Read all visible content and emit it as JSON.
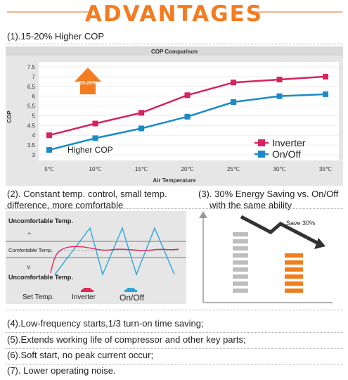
{
  "title": "ADVANTAGES",
  "section1": {
    "heading": "(1).15-20% Higher COP"
  },
  "section2": {
    "heading_line1": "(2). Constant temp. control, small temp.",
    "heading_line2": "difference, more comfortable",
    "labels": {
      "uncomfortable_top": "Uncomfortable Temp.",
      "comfortable": "Comfortable Temp.",
      "uncomfortable_bottom": "Uncomfortable Temp.",
      "set_temp": "Set Temp.",
      "inverter": "Inverter",
      "onoff": "On/Off"
    }
  },
  "section3": {
    "heading_line1": "(3). 30% Energy Saving vs. On/Off",
    "heading_line2": "with the same ability",
    "save_label": "Save 30%"
  },
  "bullets": [
    "(4).Low-frequency starts,1/3 turn-on time saving;",
    "(5).Extends working life of compressor and other key parts;",
    "(6).Soft start, no peak current occur;",
    "(7). Lower operating noise."
  ],
  "chart_data": {
    "type": "line",
    "title": "COP Comparison",
    "xlabel": "Air Temperature",
    "ylabel": "COP",
    "categories": [
      "5℃",
      "10℃",
      "15℃",
      "20℃",
      "25℃",
      "30℃",
      "35℃"
    ],
    "ylim": [
      3,
      7.5
    ],
    "yticks": [
      3,
      3.5,
      4,
      4.5,
      5,
      5.5,
      6,
      6.5,
      7,
      7.5
    ],
    "series": [
      {
        "name": "Inverter",
        "color": "#d6245e",
        "values": [
          4.0,
          4.6,
          5.15,
          6.05,
          6.7,
          6.85,
          7.0
        ]
      },
      {
        "name": "On/Off",
        "color": "#1a8bc7",
        "values": [
          3.25,
          3.85,
          4.35,
          4.95,
          5.7,
          6.0,
          6.1
        ]
      }
    ],
    "annotation_badge": "15-20%",
    "annotation_text": "Higher COP",
    "grid": true,
    "legend_position": "bottom-right"
  },
  "colors": {
    "accent": "#f47b20",
    "inverter": "#d6245e",
    "onoff": "#1a8bc7",
    "chart_bg": "#e4e4e4",
    "bar_gray": "#bdbdbd",
    "bar_orange": "#f07d1c"
  }
}
